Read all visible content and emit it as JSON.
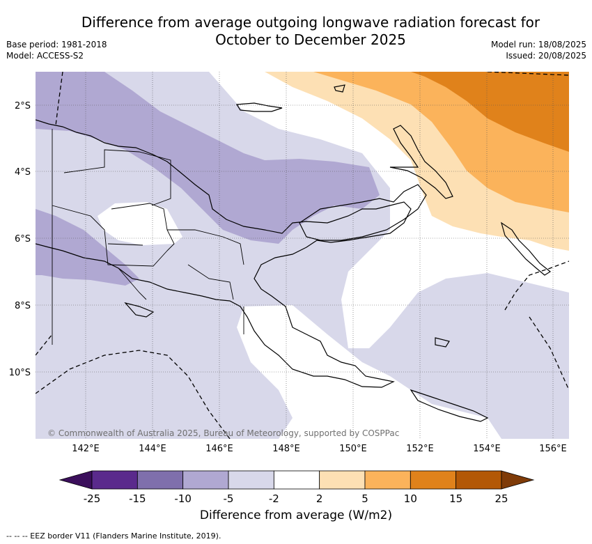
{
  "header": {
    "title_line1": "Difference from average outgoing longwave radiation forecast for",
    "title_line2": "October to December 2025",
    "base_period": "Base period: 1981-2018",
    "model": "Model: ACCESS-S2",
    "model_run": "Model run: 18/08/2025",
    "issued": "Issued: 20/08/2025"
  },
  "map": {
    "lat_labels": [
      "2°S",
      "4°S",
      "6°S",
      "8°S",
      "10°S"
    ],
    "lon_labels": [
      "142°E",
      "144°E",
      "146°E",
      "148°E",
      "150°E",
      "152°E",
      "154°E",
      "156°E"
    ],
    "copyright": "© Commonwealth of Australia 2025, Bureau of Meteorology, supported by COSPPac"
  },
  "colorbar": {
    "ticks": [
      "-25",
      "-15",
      "-10",
      "-5",
      "-2",
      "2",
      "5",
      "10",
      "15",
      "25"
    ],
    "colors": [
      "#3b0f5b",
      "#5a2a8c",
      "#7f6fac",
      "#b0a8d2",
      "#d8d8ea",
      "#ffffff",
      "#fde0b4",
      "#fbb35b",
      "#e0821b",
      "#b35806",
      "#7f3b08"
    ],
    "label": "Difference from average (W/m2)"
  },
  "footnote": "-- -- -- EEZ border V11 (Flanders Marine Institute, 2019)."
}
